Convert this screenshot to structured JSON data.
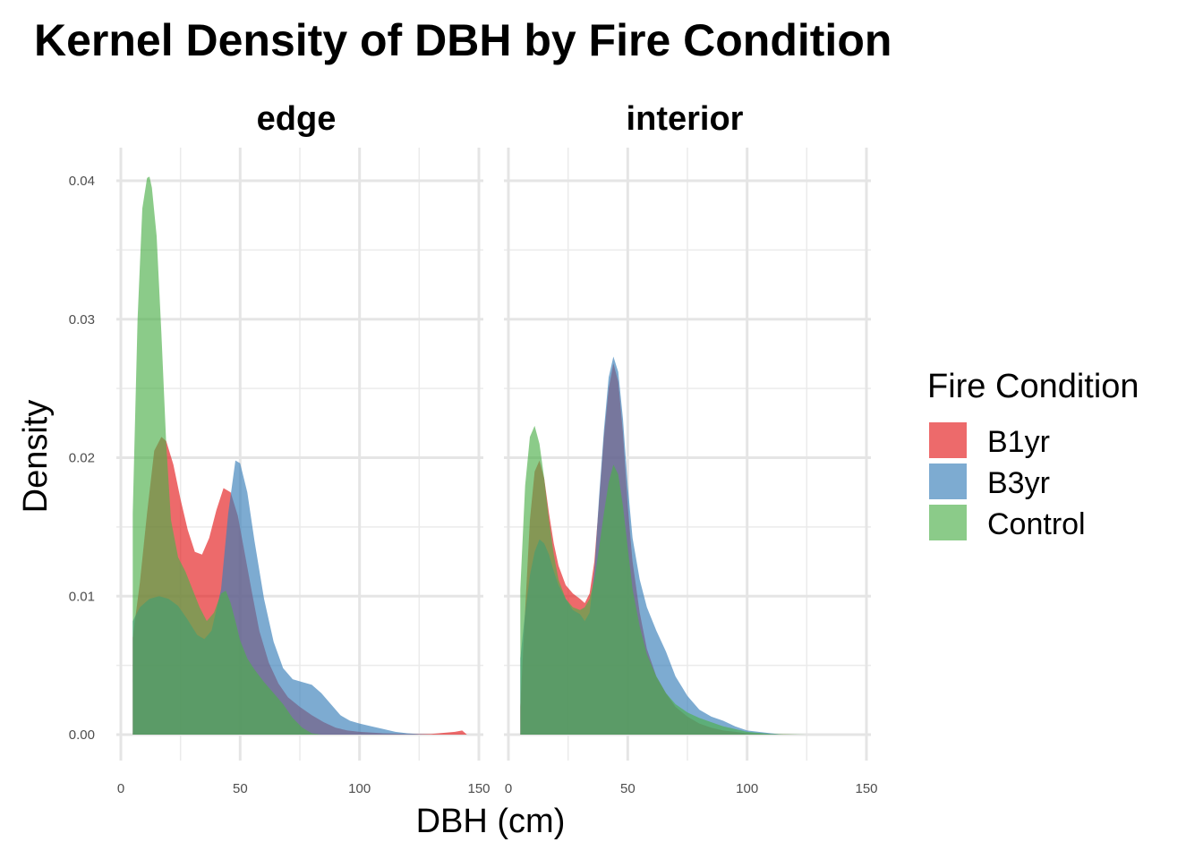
{
  "chart_data": {
    "type": "area",
    "subtype": "kernel-density-faceted",
    "title": "Kernel Density of DBH by Fire Condition",
    "xlabel": "DBH (cm)",
    "ylabel": "Density",
    "xlim": [
      0,
      150
    ],
    "ylim": [
      0,
      0.04
    ],
    "x_ticks": [
      0,
      50,
      100,
      150
    ],
    "x_tick_labels": [
      "0",
      "50",
      "100",
      "150"
    ],
    "y_ticks": [
      0,
      0.01,
      0.02,
      0.03,
      0.04
    ],
    "y_tick_labels": [
      "0.00",
      "0.01",
      "0.02",
      "0.03",
      "0.04"
    ],
    "grid": true,
    "legend": {
      "title": "Fire Condition",
      "position": "right",
      "entries": [
        {
          "name": "B1yr",
          "color": "#E41A1C"
        },
        {
          "name": "B3yr",
          "color": "#377EB8"
        },
        {
          "name": "Control",
          "color": "#4DAF4A"
        }
      ]
    },
    "fill_alpha": 0.65,
    "facets": [
      {
        "label": "edge",
        "series": [
          {
            "name": "B1yr",
            "x": [
              5,
              8,
              11,
              14,
              17,
              19,
              22,
              25,
              28,
              31,
              34,
              37,
              40,
              43,
              46,
              49,
              52,
              55,
              58,
              62,
              66,
              70,
              75,
              80,
              85,
              90,
              95,
              100,
              110,
              120,
              130,
              140,
              143,
              145
            ],
            "y": [
              0.007,
              0.011,
              0.016,
              0.0205,
              0.0215,
              0.0212,
              0.0195,
              0.017,
              0.0148,
              0.0132,
              0.013,
              0.0142,
              0.0162,
              0.0178,
              0.0175,
              0.0158,
              0.013,
              0.0102,
              0.0075,
              0.0052,
              0.0037,
              0.0027,
              0.002,
              0.0014,
              0.0009,
              0.0005,
              0.0003,
              0.0002,
              0.0001,
              5e-05,
              5e-05,
              0.0002,
              0.0003,
              0.0
            ]
          },
          {
            "name": "B3yr",
            "x": [
              5,
              8,
              12,
              16,
              20,
              24,
              28,
              32,
              35,
              38,
              42,
              45,
              48,
              50,
              53,
              56,
              60,
              64,
              68,
              72,
              76,
              80,
              84,
              88,
              92,
              96,
              100,
              105,
              110,
              115,
              120,
              125,
              130
            ],
            "y": [
              0.0082,
              0.0092,
              0.0098,
              0.01,
              0.0098,
              0.0093,
              0.0083,
              0.0072,
              0.0069,
              0.0075,
              0.0105,
              0.016,
              0.0198,
              0.0196,
              0.0175,
              0.014,
              0.0098,
              0.0067,
              0.0048,
              0.004,
              0.0038,
              0.0036,
              0.003,
              0.0022,
              0.0014,
              0.001,
              0.0008,
              0.0006,
              0.0004,
              0.0002,
              0.0001,
              3e-05,
              0.0
            ]
          },
          {
            "name": "Control",
            "x": [
              5,
              7,
              9,
              11,
              12,
              13,
              15,
              17,
              19,
              21,
              24,
              27,
              30,
              33,
              36,
              39,
              42,
              44,
              46,
              48,
              50,
              53,
              56,
              60,
              64,
              68,
              72,
              76,
              80,
              84
            ],
            "y": [
              0.016,
              0.03,
              0.038,
              0.0402,
              0.0403,
              0.0395,
              0.036,
              0.029,
              0.021,
              0.0155,
              0.0128,
              0.0118,
              0.0105,
              0.0092,
              0.0082,
              0.0088,
              0.0102,
              0.0104,
              0.0095,
              0.0082,
              0.0068,
              0.0055,
              0.0047,
              0.0038,
              0.003,
              0.0022,
              0.0012,
              0.0005,
              0.0001,
              0.0
            ]
          }
        ]
      },
      {
        "label": "interior",
        "series": [
          {
            "name": "B1yr",
            "x": [
              5,
              7,
              9,
              11,
              13,
              15,
              17,
              19,
              21,
              24,
              27,
              30,
              32,
              34,
              36,
              38,
              40,
              42,
              44,
              46,
              48,
              50,
              52,
              55,
              58,
              62,
              66,
              70,
              75,
              80,
              85,
              90,
              95,
              100,
              110,
              120
            ],
            "y": [
              0.002,
              0.009,
              0.0155,
              0.019,
              0.0198,
              0.0185,
              0.016,
              0.0138,
              0.0122,
              0.0108,
              0.0102,
              0.0098,
              0.0095,
              0.0102,
              0.0125,
              0.0168,
              0.0215,
              0.025,
              0.0268,
              0.0255,
              0.0218,
              0.0165,
              0.0125,
              0.0088,
              0.0062,
              0.0042,
              0.003,
              0.002,
              0.0013,
              0.0008,
              0.0005,
              0.0003,
              0.0002,
              0.0001,
              3e-05,
              0.0
            ]
          },
          {
            "name": "B3yr",
            "x": [
              5,
              7,
              9,
              11,
              13,
              15,
              17,
              19,
              21,
              24,
              27,
              30,
              32,
              34,
              36,
              38,
              40,
              42,
              44,
              46,
              48,
              50,
              52,
              55,
              58,
              62,
              66,
              70,
              75,
              80,
              85,
              90,
              95,
              100,
              110,
              115
            ],
            "y": [
              0.0055,
              0.0088,
              0.0115,
              0.0132,
              0.0141,
              0.0138,
              0.013,
              0.0118,
              0.0108,
              0.0098,
              0.009,
              0.0087,
              0.0082,
              0.0088,
              0.0118,
              0.0172,
              0.022,
              0.0258,
              0.0273,
              0.0262,
              0.0228,
              0.018,
              0.0142,
              0.0112,
              0.0092,
              0.0075,
              0.006,
              0.0042,
              0.0028,
              0.0018,
              0.0013,
              0.001,
              0.0006,
              0.0003,
              0.0001,
              0.0
            ]
          },
          {
            "name": "Control",
            "x": [
              5,
              7,
              9,
              11,
              13,
              15,
              17,
              19,
              21,
              24,
              27,
              30,
              32,
              34,
              36,
              38,
              40,
              42,
              44,
              46,
              48,
              50,
              52,
              55,
              58,
              62,
              66,
              70,
              75,
              80,
              85,
              90,
              95,
              100,
              110,
              125
            ],
            "y": [
              0.0105,
              0.018,
              0.0215,
              0.0223,
              0.021,
              0.0185,
              0.0155,
              0.013,
              0.0112,
              0.0098,
              0.0092,
              0.009,
              0.0092,
              0.0098,
              0.0112,
              0.0135,
              0.016,
              0.0182,
              0.0195,
              0.0188,
              0.0165,
              0.0135,
              0.0105,
              0.0078,
              0.0058,
              0.0042,
              0.003,
              0.0022,
              0.0016,
              0.0012,
              0.0009,
              0.0006,
              0.0004,
              0.0002,
              5e-05,
              0.0
            ]
          }
        ]
      }
    ]
  }
}
